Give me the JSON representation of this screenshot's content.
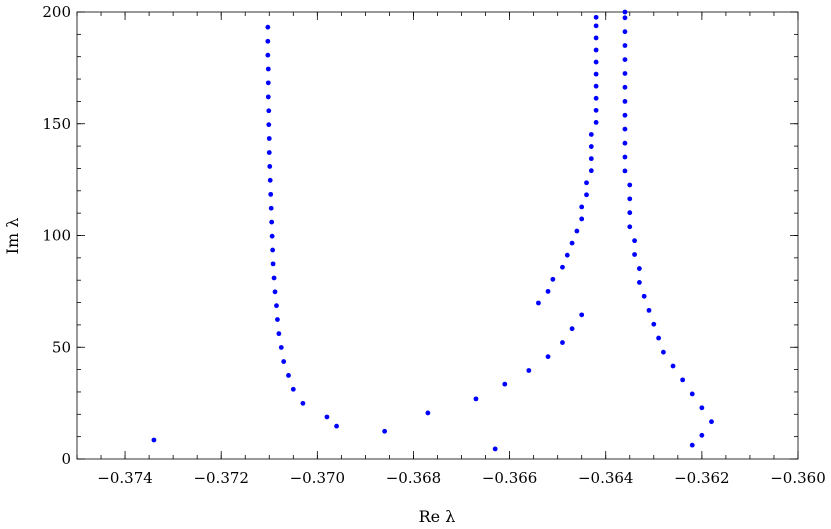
{
  "chart_data": {
    "type": "scatter",
    "title": "",
    "xlabel": "Re λ",
    "ylabel": "Im λ",
    "xlim": [
      -0.375,
      -0.36
    ],
    "ylim": [
      0,
      200
    ],
    "grid": false,
    "legend": "none",
    "x_ticks": [
      -0.374,
      -0.372,
      -0.37,
      -0.368,
      -0.366,
      -0.364,
      -0.362,
      -0.36
    ],
    "x_tick_labels": [
      "−0.374",
      "−0.372",
      "−0.370",
      "−0.368",
      "−0.366",
      "−0.364",
      "−0.362",
      "−0.360"
    ],
    "y_ticks": [
      0,
      50,
      100,
      150,
      200
    ],
    "y_tick_labels": [
      "0",
      "50",
      "100",
      "150",
      "200"
    ],
    "marker_color": "#0000ff",
    "series": [
      {
        "points": [
          [
            -0.3734,
            8.5
          ],
          [
            -0.3696,
            14.7
          ],
          [
            -0.3698,
            18.8
          ],
          [
            -0.3703,
            24.9
          ],
          [
            -0.3705,
            31.2
          ],
          [
            -0.3706,
            37.4
          ],
          [
            -0.3707,
            43.6
          ],
          [
            -0.37075,
            49.9
          ],
          [
            -0.3708,
            56.1
          ],
          [
            -0.37083,
            62.4
          ],
          [
            -0.37085,
            68.6
          ],
          [
            -0.37088,
            74.8
          ],
          [
            -0.3709,
            81.0
          ],
          [
            -0.37092,
            87.3
          ],
          [
            -0.37093,
            93.5
          ],
          [
            -0.37094,
            99.7
          ],
          [
            -0.37095,
            106.0
          ],
          [
            -0.37096,
            112.2
          ],
          [
            -0.37097,
            118.4
          ],
          [
            -0.37098,
            124.7
          ],
          [
            -0.37099,
            130.9
          ],
          [
            -0.371,
            137.1
          ],
          [
            -0.371,
            143.4
          ],
          [
            -0.37101,
            149.6
          ],
          [
            -0.37101,
            155.8
          ],
          [
            -0.37102,
            162.0
          ],
          [
            -0.37102,
            168.3
          ],
          [
            -0.37102,
            174.5
          ],
          [
            -0.37103,
            180.7
          ],
          [
            -0.37103,
            186.9
          ],
          [
            -0.37103,
            193.2
          ]
        ]
      },
      {
        "points": [
          [
            -0.3686,
            12.4
          ],
          [
            -0.3677,
            20.6
          ],
          [
            -0.3667,
            26.9
          ],
          [
            -0.3661,
            33.5
          ],
          [
            -0.3656,
            39.6
          ],
          [
            -0.3652,
            45.8
          ],
          [
            -0.3649,
            52.1
          ],
          [
            -0.3647,
            58.3
          ],
          [
            -0.3645,
            64.5
          ],
          [
            -0.3654,
            69.8
          ],
          [
            -0.3652,
            75.0
          ],
          [
            -0.3651,
            80.4
          ],
          [
            -0.3649,
            85.8
          ],
          [
            -0.3648,
            91.2
          ],
          [
            -0.3647,
            96.6
          ],
          [
            -0.3646,
            102.0
          ],
          [
            -0.3645,
            107.4
          ],
          [
            -0.3645,
            112.8
          ],
          [
            -0.3644,
            118.2
          ],
          [
            -0.3644,
            123.6
          ],
          [
            -0.3643,
            129.0
          ],
          [
            -0.3643,
            134.4
          ],
          [
            -0.3643,
            139.8
          ],
          [
            -0.3643,
            145.2
          ],
          [
            -0.3642,
            150.6
          ],
          [
            -0.3642,
            156.0
          ],
          [
            -0.3642,
            161.4
          ],
          [
            -0.3642,
            166.8
          ],
          [
            -0.3642,
            172.2
          ],
          [
            -0.3642,
            177.6
          ],
          [
            -0.3642,
            183.0
          ],
          [
            -0.3642,
            188.4
          ],
          [
            -0.3642,
            193.8
          ],
          [
            -0.3642,
            197.6
          ]
        ]
      },
      {
        "points": [
          [
            -0.3663,
            4.5
          ],
          [
            -0.3622,
            6.2
          ],
          [
            -0.362,
            10.6
          ],
          [
            -0.3618,
            16.7
          ],
          [
            -0.362,
            22.9
          ],
          [
            -0.3622,
            29.1
          ],
          [
            -0.3624,
            35.4
          ],
          [
            -0.3626,
            41.6
          ],
          [
            -0.3628,
            47.8
          ],
          [
            -0.3629,
            54.1
          ],
          [
            -0.363,
            60.3
          ],
          [
            -0.3631,
            66.5
          ],
          [
            -0.3632,
            72.8
          ],
          [
            -0.3633,
            79.0
          ],
          [
            -0.3633,
            85.2
          ],
          [
            -0.3634,
            91.5
          ],
          [
            -0.3634,
            97.7
          ],
          [
            -0.3635,
            103.9
          ],
          [
            -0.3635,
            110.2
          ],
          [
            -0.3635,
            116.4
          ],
          [
            -0.3635,
            122.6
          ],
          [
            -0.3636,
            128.9
          ],
          [
            -0.3636,
            135.1
          ],
          [
            -0.3636,
            141.3
          ],
          [
            -0.3636,
            147.6
          ],
          [
            -0.3636,
            153.8
          ],
          [
            -0.3636,
            160.0
          ],
          [
            -0.3636,
            166.3
          ],
          [
            -0.3636,
            172.5
          ],
          [
            -0.3636,
            178.7
          ],
          [
            -0.3636,
            185.0
          ],
          [
            -0.3636,
            191.2
          ],
          [
            -0.3636,
            197.4
          ],
          [
            -0.3636,
            200.0
          ]
        ]
      }
    ]
  }
}
